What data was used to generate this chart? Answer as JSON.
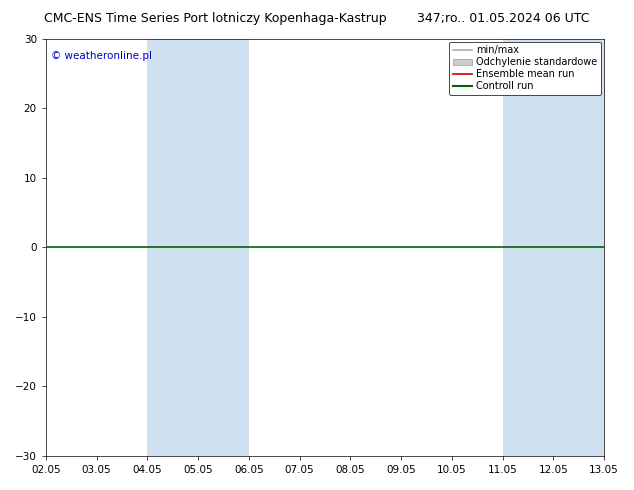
{
  "title_left": "CMC-ENS Time Series Port lotniczy Kopenhaga-Kastrup",
  "title_right": "347;ro.. 01.05.2024 06 UTC",
  "watermark": "© weatheronline.pl",
  "xlabel_ticks": [
    "02.05",
    "03.05",
    "04.05",
    "05.05",
    "06.05",
    "07.05",
    "08.05",
    "09.05",
    "10.05",
    "11.05",
    "12.05",
    "13.05"
  ],
  "ylim": [
    -30,
    30
  ],
  "yticks": [
    -30,
    -20,
    -10,
    0,
    10,
    20,
    30
  ],
  "xlim": [
    0,
    11
  ],
  "shaded_bands": [
    {
      "x_start": 2,
      "x_end": 4,
      "color": "#cfe0f0"
    },
    {
      "x_start": 9,
      "x_end": 11,
      "color": "#cfe0f0"
    }
  ],
  "control_run_y": 0,
  "control_run_color": "#006400",
  "control_run_lw": 1.2,
  "legend_entries": [
    {
      "label": "min/max",
      "color": "#aaaaaa",
      "lw": 1.2,
      "type": "line"
    },
    {
      "label": "Odchylenie standardowe",
      "color": "#cccccc",
      "lw": 6,
      "type": "patch"
    },
    {
      "label": "Ensemble mean run",
      "color": "#cc0000",
      "lw": 1.2,
      "type": "line"
    },
    {
      "label": "Controll run",
      "color": "#006400",
      "lw": 1.5,
      "type": "line"
    }
  ],
  "bg_color": "#ffffff",
  "plot_bg_color": "#ffffff",
  "title_fontsize": 9,
  "tick_fontsize": 7.5,
  "watermark_color": "#0000cc",
  "watermark_fontsize": 7.5,
  "legend_fontsize": 7
}
